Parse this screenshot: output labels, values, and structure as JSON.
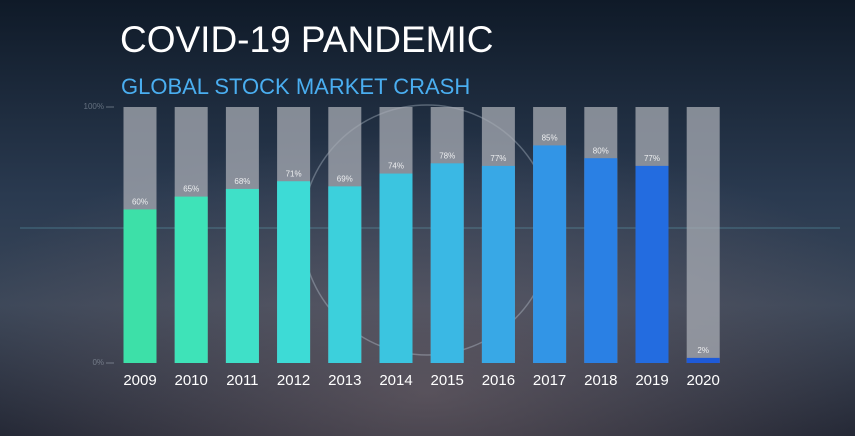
{
  "chart_data": {
    "type": "bar",
    "title": "COVID-19 PANDEMIC",
    "subtitle": "GLOBAL STOCK MARKET CRASH",
    "categories": [
      "2009",
      "2010",
      "2011",
      "2012",
      "2013",
      "2014",
      "2015",
      "2016",
      "2017",
      "2018",
      "2019",
      "2020"
    ],
    "values": [
      60,
      65,
      68,
      71,
      69,
      74,
      78,
      77,
      85,
      80,
      77,
      2
    ],
    "value_labels": [
      "60%",
      "65%",
      "68%",
      "71%",
      "69%",
      "74%",
      "78%",
      "77%",
      "85%",
      "80%",
      "77%",
      "2%"
    ],
    "colors": [
      "#3de0a8",
      "#3ee3b8",
      "#3fe0c8",
      "#3ddbd6",
      "#3cd0dc",
      "#3bc5e0",
      "#3ab8e4",
      "#38a8e6",
      "#3295e6",
      "#2a80e4",
      "#236ce0",
      "#1e5ad8"
    ],
    "ylim": [
      0,
      100
    ],
    "yticks": [
      {
        "value": 0,
        "label": "0%"
      },
      {
        "value": 100,
        "label": "100%"
      }
    ]
  }
}
